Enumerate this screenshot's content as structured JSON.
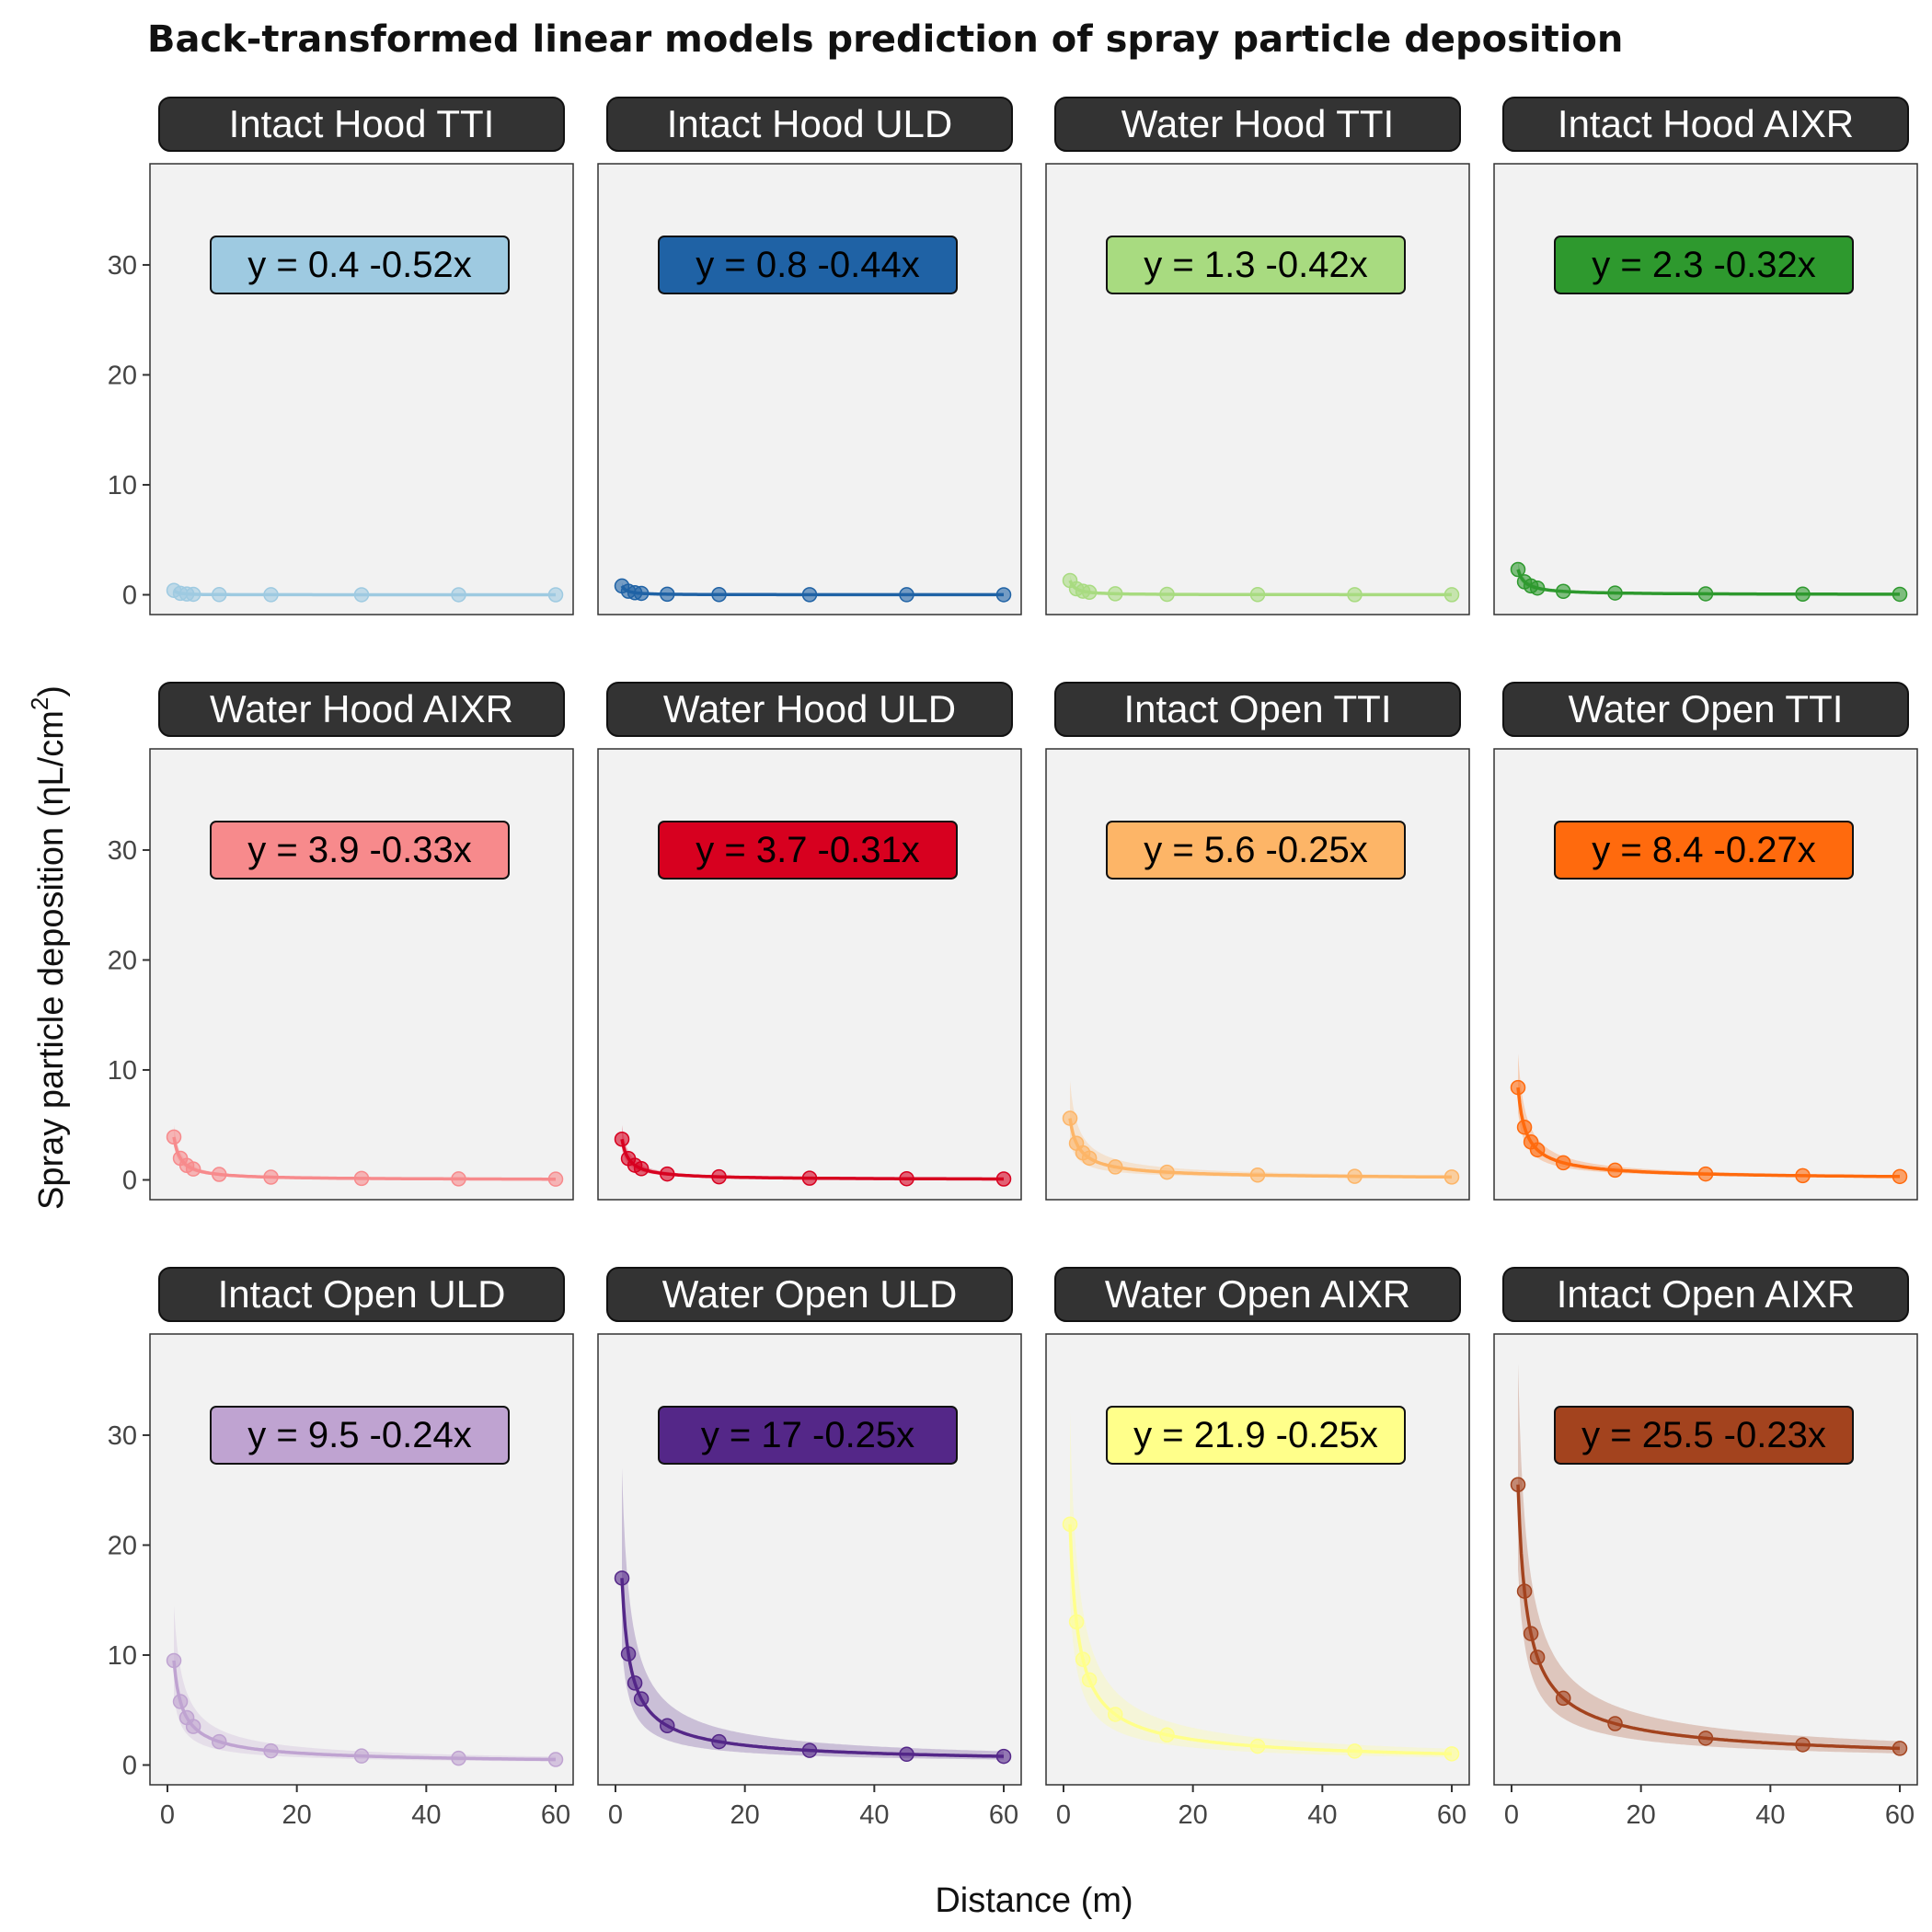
{
  "title": "Back-transformed linear models prediction of spray particle deposition",
  "xlabel": "Distance (m)",
  "ylabel_main": "Spray particle deposition (ηL/cm",
  "ylabel_sup": "2",
  "ylabel_close": ")",
  "chart_data": {
    "type": "line",
    "layout": "facet-grid-3x4",
    "xlim": [
      0,
      60
    ],
    "ylim": [
      0,
      37
    ],
    "x_ticks": [
      0,
      20,
      40,
      60
    ],
    "y_ticks": [
      0,
      10,
      20,
      30
    ],
    "x_points": [
      1,
      2,
      3,
      4,
      8,
      16,
      30,
      45,
      60
    ],
    "model": "y = a * x^b",
    "panels": [
      {
        "name": "Intact Hood TTI",
        "equation": "y =  0.4 -0.52x",
        "a": 0.4,
        "b": -0.52,
        "color": "#9ECAE1",
        "ci_top": 0.55
      },
      {
        "name": "Intact Hood ULD",
        "equation": "y =  0.8 -0.44x",
        "a": 0.8,
        "b": -0.44,
        "color": "#1F62A5",
        "ci_top": 1.1
      },
      {
        "name": "Water Hood TTI",
        "equation": "y =  1.3 -0.42x",
        "a": 1.3,
        "b": -0.42,
        "color": "#A8DB80",
        "ci_top": 1.8
      },
      {
        "name": "Intact Hood AIXR",
        "equation": "y =  2.3 -0.32x",
        "a": 2.3,
        "b": -0.32,
        "color": "#2E992E",
        "ci_top": 3.0
      },
      {
        "name": "Water Hood AIXR",
        "equation": "y =  3.9 -0.33x",
        "a": 3.9,
        "b": -0.33,
        "color": "#F78A8C",
        "ci_top": 5.0
      },
      {
        "name": "Water Hood ULD",
        "equation": "y =  3.7 -0.31x",
        "a": 3.7,
        "b": -0.31,
        "color": "#D7001F",
        "ci_top": 5.0
      },
      {
        "name": "Intact Open TTI",
        "equation": "y =  5.6 -0.25x",
        "a": 5.6,
        "b": -0.25,
        "color": "#FDB567",
        "ci_top": 9.0
      },
      {
        "name": "Water Open TTI",
        "equation": "y =  8.4 -0.27x",
        "a": 8.4,
        "b": -0.27,
        "color": "#FF6A0D",
        "ci_top": 11.5
      },
      {
        "name": "Intact Open ULD",
        "equation": "y =  9.5 -0.24x",
        "a": 9.5,
        "b": -0.24,
        "color": "#BFA3D1",
        "ci_top": 14.5
      },
      {
        "name": "Water Open ULD",
        "equation": "y =  17 -0.25x",
        "a": 17,
        "b": -0.25,
        "color": "#542788",
        "ci_top": 27.0
      },
      {
        "name": "Water Open AIXR",
        "equation": "y =  21.9 -0.25x",
        "a": 21.9,
        "b": -0.25,
        "color": "#FFFF8A",
        "ci_top": 32.0
      },
      {
        "name": "Intact Open AIXR",
        "equation": "y =  25.5 -0.23x",
        "a": 25.5,
        "b": -0.23,
        "color": "#A3431E",
        "ci_top": 36.5
      }
    ]
  }
}
